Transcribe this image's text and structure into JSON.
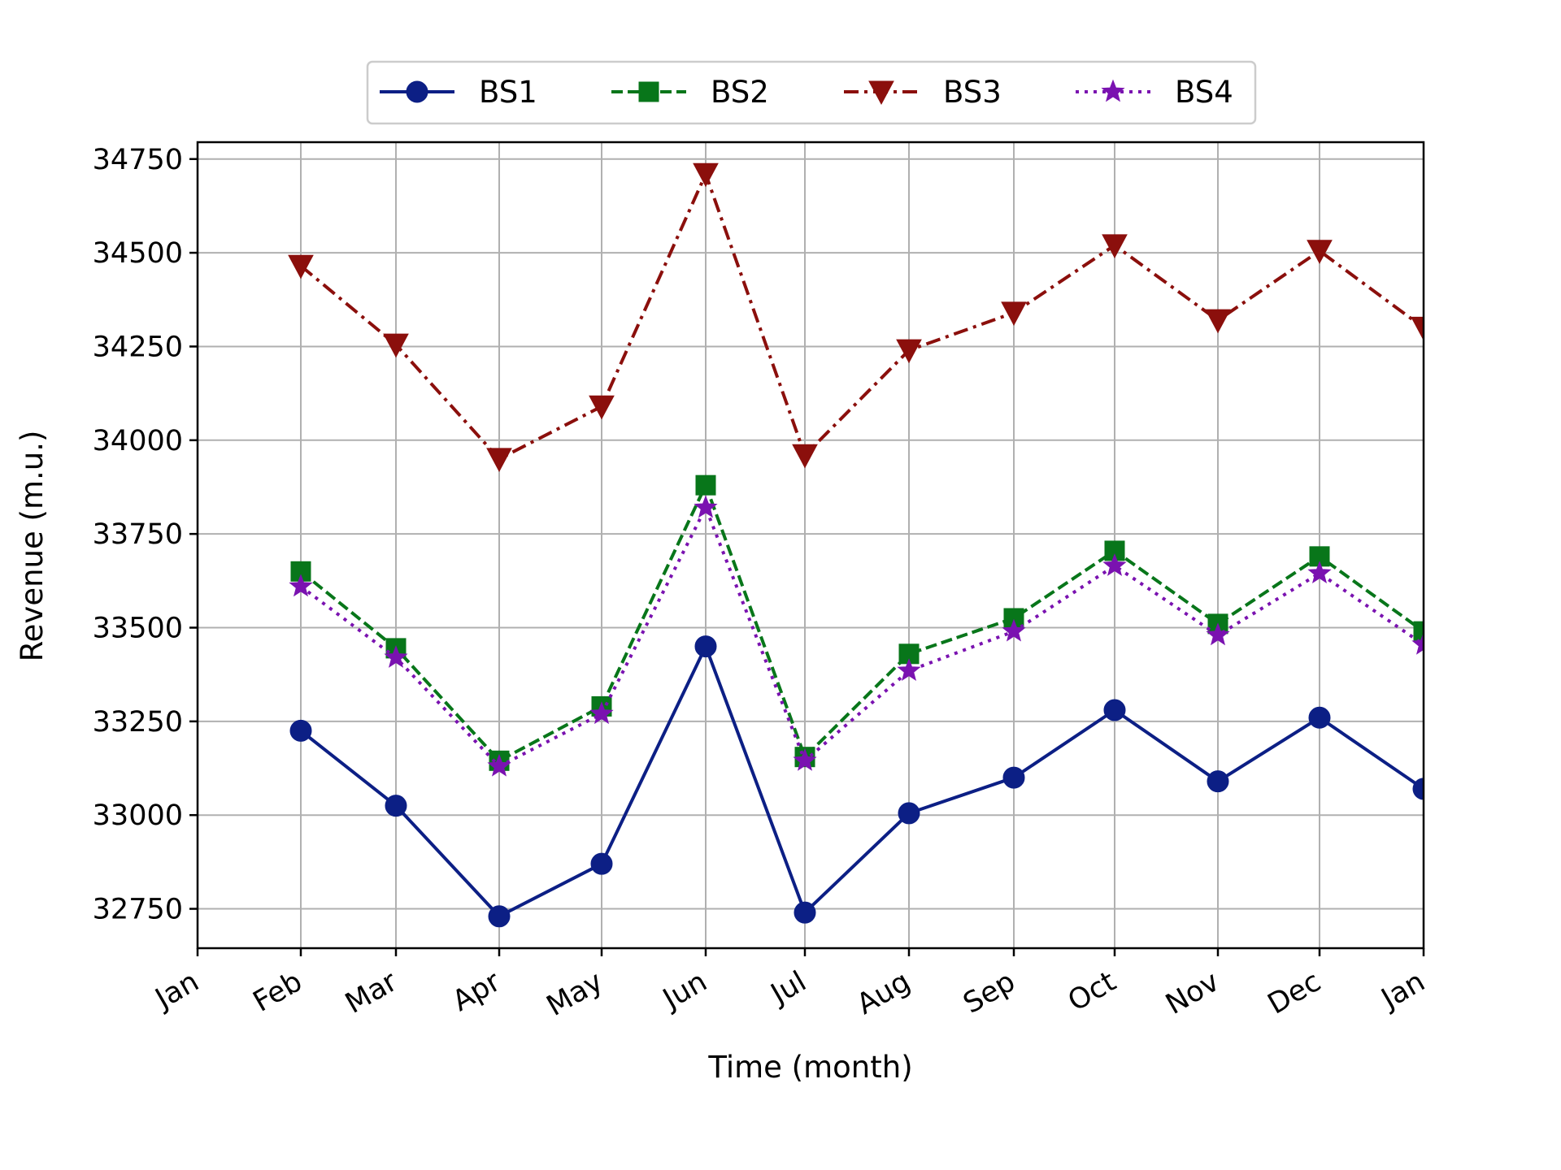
{
  "chart_data": {
    "type": "line",
    "xlabel": "Time (month)",
    "ylabel": "Revenue (m.u.)",
    "categories": [
      "Jan",
      "Feb",
      "Mar",
      "Apr",
      "May",
      "Jun",
      "Jul",
      "Aug",
      "Sep",
      "Oct",
      "Nov",
      "Dec",
      "Jan"
    ],
    "ylim": [
      32645,
      34795
    ],
    "yticks": [
      32750,
      33000,
      33250,
      33500,
      33750,
      34000,
      34250,
      34500,
      34750
    ],
    "grid": true,
    "legend_position": "top-center",
    "series": [
      {
        "name": "BS1",
        "color": "#0c1f85",
        "marker": "circle",
        "linestyle": "solid",
        "x": [
          "Feb",
          "Mar",
          "Apr",
          "May",
          "Jun",
          "Jul",
          "Aug",
          "Sep",
          "Oct",
          "Nov",
          "Dec",
          "Jan"
        ],
        "values": [
          33225,
          33025,
          32730,
          32870,
          33450,
          32740,
          33005,
          33100,
          33280,
          33090,
          33260,
          33070
        ]
      },
      {
        "name": "BS2",
        "color": "#08761a",
        "marker": "square",
        "linestyle": "dashed",
        "x": [
          "Feb",
          "Mar",
          "Apr",
          "May",
          "Jun",
          "Jul",
          "Aug",
          "Sep",
          "Oct",
          "Nov",
          "Dec",
          "Jan"
        ],
        "values": [
          33650,
          33445,
          33145,
          33290,
          33880,
          33155,
          33430,
          33525,
          33705,
          33510,
          33690,
          33490
        ]
      },
      {
        "name": "BS3",
        "color": "#8b0f0c",
        "marker": "triangle-down",
        "linestyle": "dashdot",
        "x": [
          "Feb",
          "Mar",
          "Apr",
          "May",
          "Jun",
          "Jul",
          "Aug",
          "Sep",
          "Oct",
          "Nov",
          "Dec",
          "Jan"
        ],
        "values": [
          34465,
          34255,
          33950,
          34090,
          34710,
          33960,
          34240,
          34340,
          34520,
          34320,
          34505,
          34300
        ]
      },
      {
        "name": "BS4",
        "color": "#7a12b0",
        "marker": "star",
        "linestyle": "dotted",
        "x": [
          "Feb",
          "Mar",
          "Apr",
          "May",
          "Jun",
          "Jul",
          "Aug",
          "Sep",
          "Oct",
          "Nov",
          "Dec",
          "Jan"
        ],
        "values": [
          33610,
          33420,
          33130,
          33270,
          33820,
          33145,
          33385,
          33490,
          33665,
          33480,
          33645,
          33455
        ]
      }
    ]
  }
}
